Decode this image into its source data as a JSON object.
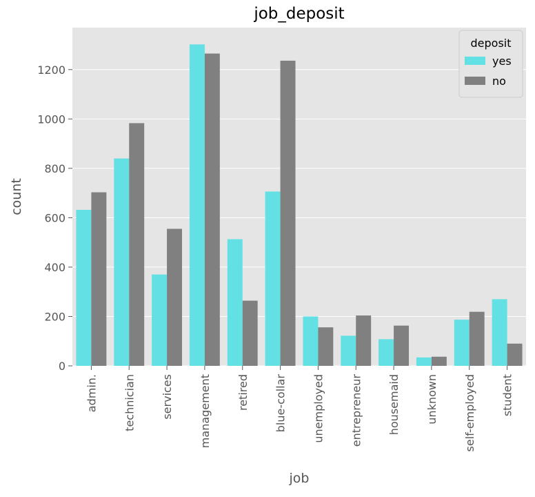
{
  "chart_data": {
    "type": "bar",
    "title": "job_deposit",
    "xlabel": "job",
    "ylabel": "count",
    "categories": [
      "admin.",
      "technician",
      "services",
      "management",
      "retired",
      "blue-collar",
      "unemployed",
      "entrepreneur",
      "housemaid",
      "unknown",
      "self-employed",
      "student"
    ],
    "series": [
      {
        "name": "yes",
        "color": "#63e0e3",
        "values": [
          632,
          840,
          370,
          1302,
          513,
          706,
          200,
          122,
          108,
          34,
          187,
          270
        ]
      },
      {
        "name": "no",
        "color": "#808080",
        "values": [
          703,
          983,
          555,
          1265,
          264,
          1236,
          156,
          204,
          163,
          37,
          219,
          90
        ]
      }
    ],
    "yticks": [
      0,
      200,
      400,
      600,
      800,
      1000,
      1200
    ],
    "ylim": [
      0,
      1370
    ],
    "grid": true,
    "legend": {
      "title": "deposit",
      "position": "top-right"
    },
    "colors": {
      "background": "#e5e5e5",
      "grid": "#ffffff",
      "text": "#555555"
    }
  }
}
